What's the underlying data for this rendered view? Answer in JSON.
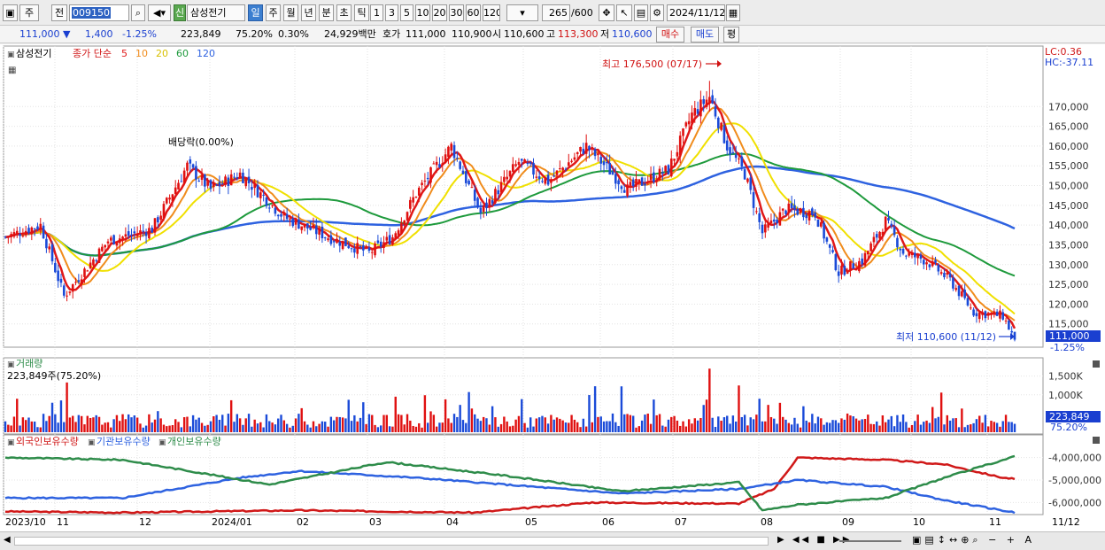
{
  "toolbar": {
    "market": "주",
    "prev": "전",
    "code": "009150",
    "stock_tag": "신",
    "stock_name": "삼성전기",
    "periods": [
      "일",
      "주",
      "월",
      "년",
      "분",
      "초",
      "틱"
    ],
    "active_period": "일",
    "intervals": [
      "1",
      "3",
      "5",
      "10",
      "20",
      "30",
      "60",
      "120"
    ],
    "count": "265",
    "count_max": "/600",
    "date": "2024/11/12"
  },
  "infobar": {
    "price": "111,000",
    "change": "1,400",
    "change_pct": "-1.25%",
    "volume": "223,849",
    "volume_ratio": "75.20%",
    "turnover_pct": "0.30%",
    "trade_value": "24,929백만",
    "ask_label": "호가",
    "ask1": "111,000",
    "ask2": "110,900",
    "open_label": "시",
    "open": "110,600",
    "high_label": "고",
    "high": "113,300",
    "low_label": "저",
    "low": "110,600",
    "buy": "매수",
    "sell": "매도",
    "eval": "평"
  },
  "price_panel": {
    "stock_label": "삼성전기",
    "ma_label": "종가 단순",
    "ma_periods": [
      "5",
      "10",
      "20",
      "60",
      "120"
    ],
    "ma_colors": [
      "#e01818",
      "#f08c1c",
      "#f0e000",
      "#1e9a3c",
      "#2e62e0"
    ],
    "lc_label": "LC:0.36",
    "hc_label": "HC:-37.11",
    "high_annotation": "최고 176,500 (07/17)",
    "low_annotation": "최저 110,600 (11/12)",
    "dividend_annotation": "배당락(0.00%)",
    "current_price_tag": "111,000",
    "current_change_tag": "-1.25%",
    "y_ticks": [
      "170,000",
      "165,000",
      "160,000",
      "155,000",
      "150,000",
      "145,000",
      "140,000",
      "135,000",
      "130,000",
      "125,000",
      "120,000",
      "115,000"
    ]
  },
  "volume_panel": {
    "title": "거래량",
    "value_label": "223,849주(75.20%)",
    "y_ticks": [
      "1,500K",
      "1,000K"
    ],
    "current_tag": "223,849",
    "current_pct": "75.20%"
  },
  "holding_panel": {
    "series": [
      "외국인보유수량",
      "기관보유수량",
      "개인보유수량"
    ],
    "colors": [
      "#d01818",
      "#2e62e0",
      "#2e8c4a"
    ],
    "y_ticks": [
      "-4,000,000",
      "-5,000,000",
      "-6,000,000"
    ]
  },
  "x_axis": {
    "labels": [
      "2023/10",
      "11",
      "12",
      "2024/01",
      "02",
      "03",
      "04",
      "05",
      "06",
      "07",
      "08",
      "09",
      "10",
      "11",
      "11/12"
    ]
  },
  "chart_data": {
    "type": "candlestick",
    "price_range": [
      110600,
      176500
    ],
    "anchors": {
      "start_close": 137000,
      "2023-10-low": 122000,
      "2023-12-late": 155000,
      "2024-01-early": 153000,
      "2024-03-early": 133000,
      "2024-04-early": 160000,
      "2024-04-late": 143000,
      "2024-05-mid": 156000,
      "2024-06-mid": 160000,
      "2024-06-late": 149000,
      "2024-07-17-high": 176500,
      "2024-08-early": 160000,
      "2024-08-mid": 138000,
      "2024-09-early": 143000,
      "2024-09-mid": 128000,
      "2024-10-early": 141000,
      "2024-10-mid": 131000,
      "2024-11-early": 118000,
      "2024-11-12-low": 110600,
      "last_close": 111000
    },
    "volume_range_k": [
      0,
      1800
    ],
    "holding_range": [
      -6500000,
      -3500000
    ]
  }
}
